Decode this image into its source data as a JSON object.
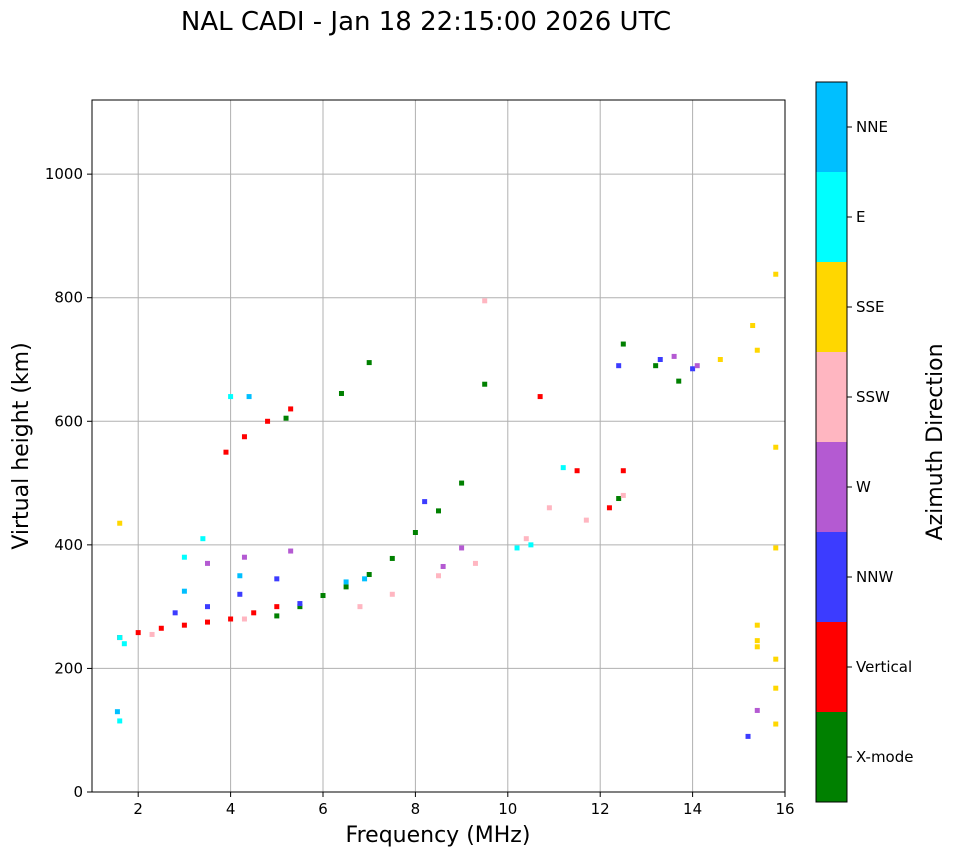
{
  "chart_data": {
    "type": "scatter",
    "title": "NAL CADI - Jan 18 22:15:00 2026 UTC",
    "xlabel": "Frequency (MHz)",
    "ylabel": "Virtual height (km)",
    "xlim": [
      1,
      16
    ],
    "ylim": [
      0,
      1120
    ],
    "xticks": [
      2,
      4,
      6,
      8,
      10,
      12,
      14,
      16
    ],
    "yticks": [
      0,
      200,
      400,
      600,
      800,
      1000
    ],
    "grid": true,
    "colorbar": {
      "label": "Azimuth Direction",
      "categories": [
        {
          "name": "X-mode",
          "color": "#008000"
        },
        {
          "name": "Vertical",
          "color": "#ff0000"
        },
        {
          "name": "NNW",
          "color": "#3c3cff"
        },
        {
          "name": "W",
          "color": "#b45ad2"
        },
        {
          "name": "SSW",
          "color": "#ffb6c1"
        },
        {
          "name": "SSE",
          "color": "#ffd700"
        },
        {
          "name": "E",
          "color": "#00ffff"
        },
        {
          "name": "NNE",
          "color": "#00bfff"
        }
      ]
    },
    "traces": [
      {
        "category": "X-mode",
        "points": [
          [
            5.0,
            285
          ],
          [
            5.5,
            300
          ],
          [
            6.0,
            318
          ],
          [
            6.5,
            332
          ],
          [
            7.0,
            352
          ],
          [
            7.5,
            378
          ],
          [
            8.0,
            420
          ],
          [
            8.5,
            455
          ],
          [
            9.0,
            500
          ],
          [
            6.4,
            645
          ],
          [
            5.2,
            605
          ],
          [
            7.0,
            695
          ],
          [
            9.5,
            660
          ],
          [
            12.5,
            725
          ],
          [
            13.2,
            690
          ],
          [
            13.7,
            665
          ],
          [
            12.4,
            475
          ]
        ]
      },
      {
        "category": "Vertical",
        "points": [
          [
            1.6,
            250
          ],
          [
            2.0,
            258
          ],
          [
            2.5,
            265
          ],
          [
            3.0,
            270
          ],
          [
            3.5,
            275
          ],
          [
            4.0,
            280
          ],
          [
            4.5,
            290
          ],
          [
            5.0,
            300
          ],
          [
            3.9,
            550
          ],
          [
            4.3,
            575
          ],
          [
            4.8,
            600
          ],
          [
            5.3,
            620
          ],
          [
            10.7,
            640
          ],
          [
            11.5,
            520
          ],
          [
            12.2,
            460
          ],
          [
            12.5,
            520
          ]
        ]
      },
      {
        "category": "NNW",
        "points": [
          [
            2.8,
            290
          ],
          [
            3.5,
            300
          ],
          [
            4.2,
            320
          ],
          [
            5.0,
            345
          ],
          [
            5.5,
            305
          ],
          [
            8.2,
            470
          ],
          [
            13.3,
            700
          ],
          [
            14.0,
            685
          ],
          [
            15.2,
            90
          ],
          [
            12.4,
            690
          ]
        ]
      },
      {
        "category": "W",
        "points": [
          [
            3.5,
            370
          ],
          [
            4.3,
            380
          ],
          [
            5.3,
            390
          ],
          [
            8.6,
            365
          ],
          [
            9.0,
            395
          ],
          [
            13.6,
            705
          ],
          [
            14.1,
            690
          ],
          [
            15.4,
            132
          ]
        ]
      },
      {
        "category": "SSW",
        "points": [
          [
            2.3,
            255
          ],
          [
            4.3,
            280
          ],
          [
            6.8,
            300
          ],
          [
            7.5,
            320
          ],
          [
            8.5,
            350
          ],
          [
            9.3,
            370
          ],
          [
            10.4,
            410
          ],
          [
            10.9,
            460
          ],
          [
            11.7,
            440
          ],
          [
            12.5,
            480
          ],
          [
            9.5,
            795
          ]
        ]
      },
      {
        "category": "SSE",
        "points": [
          [
            15.3,
            755
          ],
          [
            15.4,
            715
          ],
          [
            15.8,
            838
          ],
          [
            15.8,
            558
          ],
          [
            15.8,
            395
          ],
          [
            15.4,
            270
          ],
          [
            15.4,
            245
          ],
          [
            15.4,
            235
          ],
          [
            15.8,
            215
          ],
          [
            15.8,
            168
          ],
          [
            15.8,
            110
          ],
          [
            14.6,
            700
          ],
          [
            1.6,
            435
          ]
        ]
      },
      {
        "category": "E",
        "points": [
          [
            1.6,
            250
          ],
          [
            1.7,
            240
          ],
          [
            3.0,
            380
          ],
          [
            3.4,
            410
          ],
          [
            4.0,
            640
          ],
          [
            10.2,
            395
          ],
          [
            10.5,
            400
          ],
          [
            11.2,
            525
          ],
          [
            1.6,
            115
          ]
        ]
      },
      {
        "category": "NNE",
        "points": [
          [
            3.0,
            325
          ],
          [
            4.2,
            350
          ],
          [
            6.5,
            340
          ],
          [
            6.9,
            345
          ],
          [
            4.4,
            640
          ],
          [
            1.55,
            130
          ]
        ]
      }
    ]
  }
}
